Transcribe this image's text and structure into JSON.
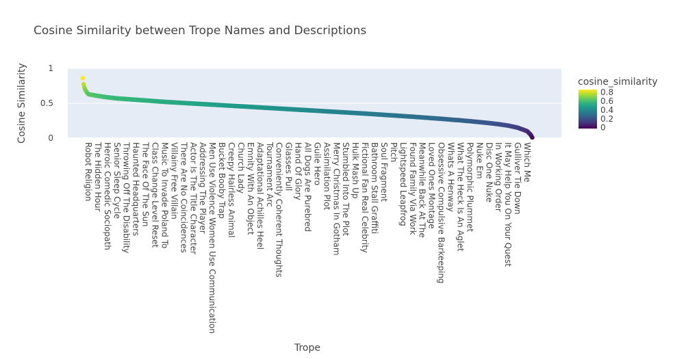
{
  "chart_data": {
    "type": "scatter",
    "title": "Cosine Similarity between Trope Names and Descriptions",
    "xlabel": "Trope",
    "ylabel": "Cosine Similarity",
    "ylim": [
      0,
      1
    ],
    "y_ticks": [
      "0",
      "0.5",
      "1"
    ],
    "grid": true,
    "colorscale": "Viridis",
    "colorbar": {
      "title": "cosine_similarity",
      "range": [
        -0.02,
        0.86
      ],
      "ticks": [
        "0",
        "0.2",
        "0.4",
        "0.6",
        "0.8"
      ]
    },
    "colors": {
      "plot_bg": "#E5ECF6",
      "grid": "#FFFFFF",
      "text": "#444444"
    },
    "categories": [
      "Robot Religion",
      "The Hidden Hour",
      "Heroic Comedic Sociopath",
      "Senior Sleep Cycle",
      "Throwing Off The Disability",
      "Haunted Headquarters",
      "The Face Of The Sun",
      "Class Change Level Reset",
      "Music To Invade Poland To",
      "Villainy Free Villain",
      "There Are No Coincidences",
      "Actor Is The Title Character",
      "Addressing The Player",
      "Men Use Violence Women Use Communication",
      "Bucket Booby Trap",
      "Creepy Hairless Animal",
      "Church Lady",
      "Emnity With An Object",
      "Adaptational Achilles Heel",
      "Tournament Arc",
      "Conveniently Coherent Thoughts",
      "Glasses Pull",
      "Hand Of Glory",
      "All Dogs Are Purebred",
      "Guile Hero",
      "Assimilation Plot",
      "Merry Christmas In Gotham",
      "Stumbled Into The Plot",
      "Hulk Mash Up",
      "Fictional Fan Real Celebrity",
      "Bathroom Stall Graffiti",
      "Soul Fragment",
      "Pitch",
      "Lightspeed Leapfrog",
      "Found Family Via Work",
      "Meanwhile Back At The",
      "Loved Ones Montage",
      "Obsessive Compulsive Barkeeping",
      "Whats A Henway",
      "What The Heck Is An Aglet",
      "Polymorphic Plummet",
      "Nuke Em",
      "Disc One Nuke",
      "In Working Order",
      "It May Help You On Your Quest",
      "Gulliver Tie Down",
      "Which Me"
    ],
    "values": [
      0.63,
      0.605,
      0.585,
      0.57,
      0.56,
      0.55,
      0.54,
      0.53,
      0.52,
      0.512,
      0.504,
      0.496,
      0.488,
      0.48,
      0.472,
      0.464,
      0.456,
      0.448,
      0.44,
      0.432,
      0.424,
      0.416,
      0.408,
      0.4,
      0.392,
      0.384,
      0.376,
      0.368,
      0.36,
      0.352,
      0.343,
      0.334,
      0.325,
      0.316,
      0.307,
      0.297,
      0.287,
      0.277,
      0.266,
      0.255,
      0.243,
      0.23,
      0.216,
      0.2,
      0.18,
      0.15,
      0.1
    ],
    "start_peak": 0.86,
    "end_value": 0.0
  }
}
